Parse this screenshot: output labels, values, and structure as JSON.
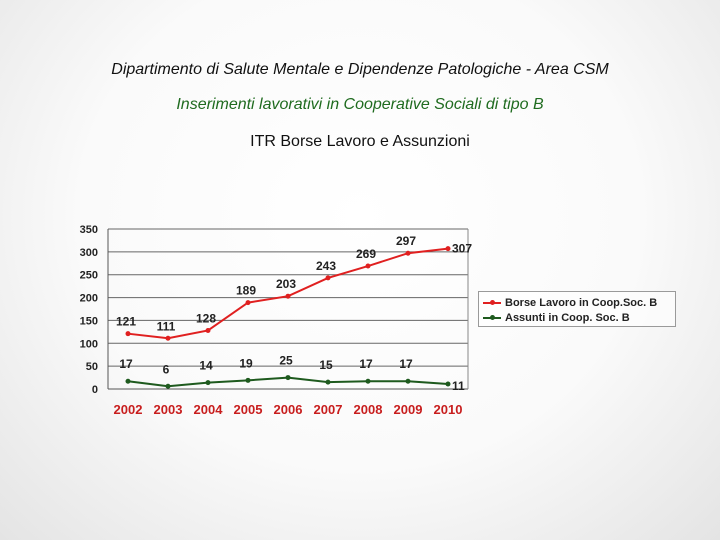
{
  "header": {
    "title": "Dipartimento di Salute Mentale e Dipendenze Patologiche - Area CSM",
    "subtitle": "Inserimenti lavorativi in Cooperative Sociali di tipo B",
    "section": "ITR Borse Lavoro e Assunzioni"
  },
  "chart_data": {
    "type": "line",
    "categories": [
      "2002",
      "2003",
      "2004",
      "2005",
      "2006",
      "2007",
      "2008",
      "2009",
      "2010"
    ],
    "ylim": [
      0,
      350
    ],
    "yticks": [
      "0",
      "50",
      "100",
      "150",
      "200",
      "250",
      "300",
      "350"
    ],
    "grid": true,
    "legend_position": "right",
    "series": [
      {
        "name": "Borse Lavoro in Coop.Soc. B",
        "color": "#e02020",
        "values": [
          121,
          111,
          128,
          189,
          203,
          243,
          269,
          297,
          307
        ],
        "labels": [
          "121",
          "111",
          "128",
          "189",
          "203",
          "243",
          "269",
          "297",
          "307"
        ]
      },
      {
        "name": "Assunti in Coop. Soc. B",
        "color": "#1e5a1e",
        "values": [
          17,
          6,
          14,
          19,
          25,
          15,
          17,
          17,
          11
        ],
        "labels": [
          "17",
          "6",
          "14",
          "19",
          "25",
          "15",
          "17",
          "17",
          "11"
        ]
      }
    ]
  }
}
